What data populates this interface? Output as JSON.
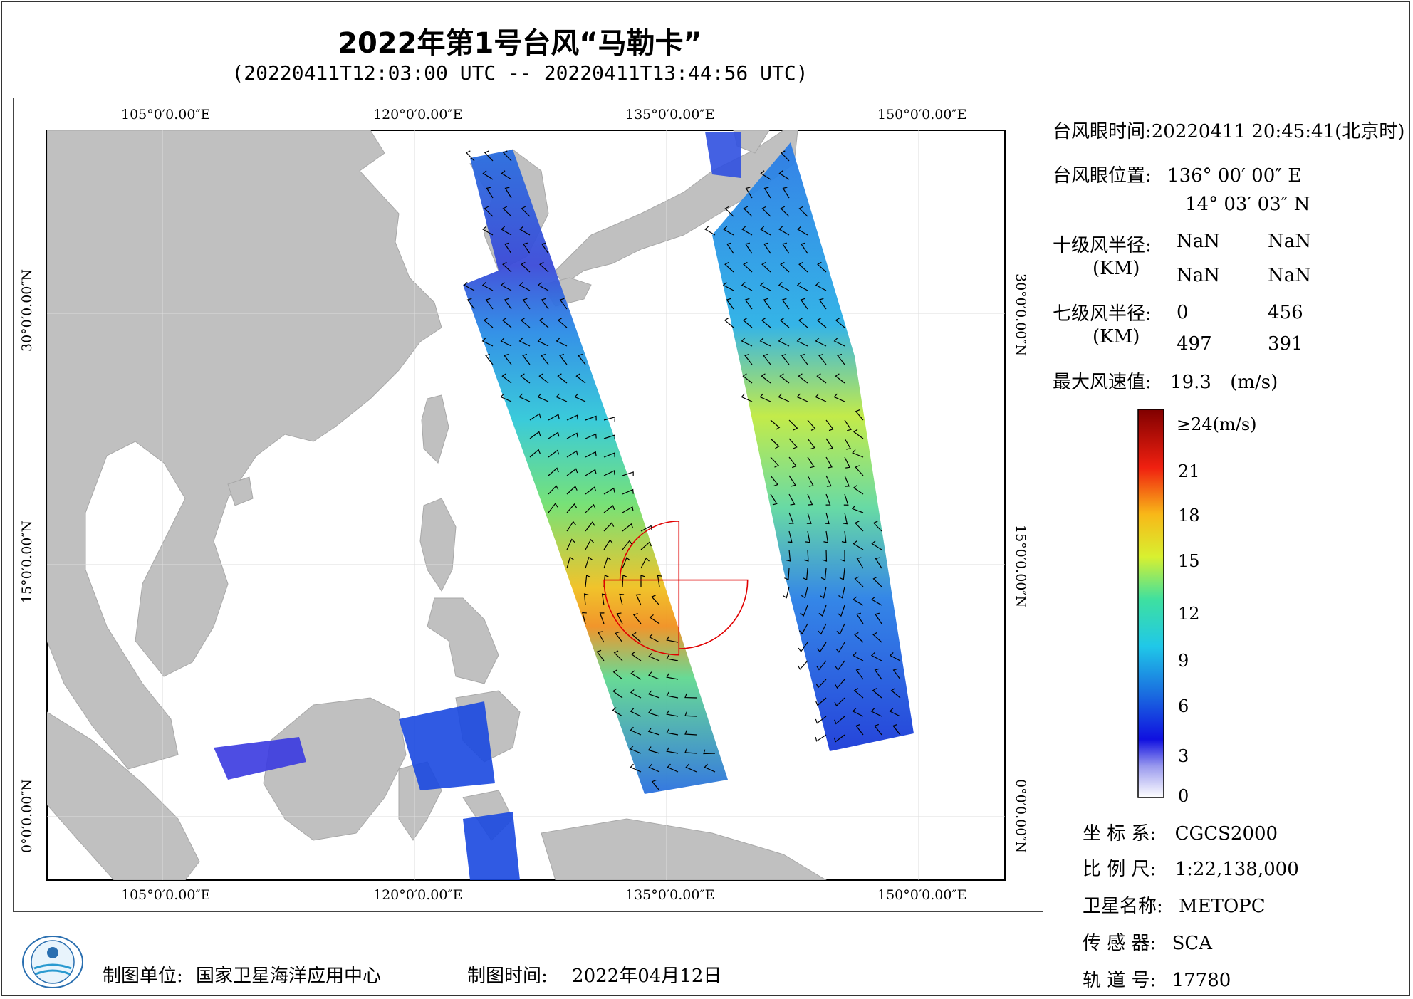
{
  "title": "2022年第1号台风“马勒卡”",
  "subtitle": "(20220411T12:03:00 UTC -- 20220411T13:44:56 UTC)",
  "lon_labels": [
    "105°0′0.00″E",
    "120°0′0.00″E",
    "135°0′0.00″E",
    "150°0′0.00″E"
  ],
  "lat_labels": [
    "30°0′0.00″N",
    "15°0′0.00″N",
    "0°0′0.00″N"
  ],
  "map": {
    "lon_range": [
      98.2,
      155.5
    ],
    "lat_range": [
      -3.8,
      40.8
    ],
    "eye_lon": 136.0,
    "eye_lat": 14.05,
    "land_color": "#c0c0c0",
    "sea_color": "#ffffff"
  },
  "info": {
    "eye_time_label": "台风眼时间:",
    "eye_time_value": "20220411 20:45:41(北京时)",
    "eye_pos_label": "台风眼位置:",
    "eye_lon_value": "136° 00′ 00″ E",
    "eye_lat_value": "14° 03′ 03″ N",
    "r10_label": "十级风半径:",
    "r10_unit": "(KM)",
    "r10_values": [
      "NaN",
      "NaN",
      "NaN",
      "NaN"
    ],
    "r7_label": "七级风半径:",
    "r7_unit": "(KM)",
    "r7_values": [
      "0",
      "456",
      "497",
      "391"
    ],
    "max_wind_label": "最大风速值:",
    "max_wind_value": "19.3",
    "max_wind_unit": "(m/s)"
  },
  "colorbar": {
    "top_label": "≥24(m/s)",
    "ticks": [
      "21",
      "18",
      "15",
      "12",
      "9",
      "6",
      "3",
      "0"
    ]
  },
  "meta": {
    "crs_label": "坐 标 系:",
    "crs_value": "CGCS2000",
    "scale_label": "比 例 尺:",
    "scale_value": "1:22,138,000",
    "sat_label": "卫星名称:",
    "sat_value": "METOPC",
    "sensor_label": "传 感 器:",
    "sensor_value": "SCA",
    "orbit_label": "轨 道 号:",
    "orbit_value": "17780"
  },
  "footer": {
    "org_label": "制图单位:",
    "org_value": "国家卫星海洋应用中心",
    "date_label": "制图时间:",
    "date_value": "2022年04月12日"
  }
}
